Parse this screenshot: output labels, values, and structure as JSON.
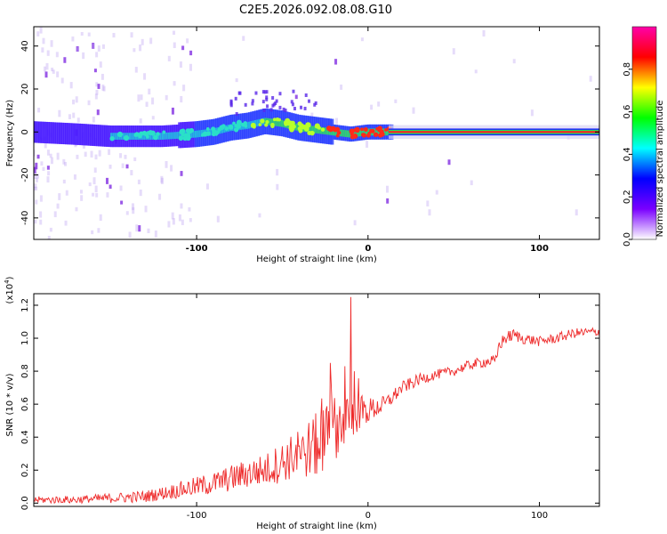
{
  "title": "C2E5.2026.092.08.08.G10",
  "chart_data": [
    {
      "type": "heatmap",
      "name": "spectrogram",
      "xlabel": "Height of straight line (km)",
      "ylabel": "Frequency (Hz)",
      "xlim": [
        -195,
        135
      ],
      "ylim": [
        -50,
        49
      ],
      "xticks": [
        -100,
        0,
        100
      ],
      "yticks": [
        -40,
        -20,
        0,
        20,
        40
      ],
      "ridge": {
        "x": [
          -195,
          -170,
          -150,
          -120,
          -100,
          -90,
          -80,
          -70,
          -60,
          -50,
          -40,
          -30,
          -20,
          -10,
          0,
          10,
          135
        ],
        "y": [
          0,
          -1,
          -2,
          -2,
          -1,
          0,
          2,
          3,
          5,
          4,
          2,
          1,
          0,
          -1,
          0,
          0,
          0
        ]
      },
      "colorbar": {
        "label": "Normalized spectral amplitude",
        "range": [
          0,
          1
        ],
        "ticks": [
          "0.0",
          "0.2",
          "0.4",
          "0.6",
          "0.8"
        ],
        "colors": [
          "#ffffff",
          "#7a00ff",
          "#0000ff",
          "#00ffff",
          "#00ff00",
          "#ffff00",
          "#ff0000",
          "#ff00aa"
        ]
      }
    },
    {
      "type": "line",
      "name": "snr",
      "xlabel": "Height of straight line (km)",
      "ylabel": "SNR (10 * v/v)",
      "ymultiplier": "(x10",
      "ymultiplier_exp": "4",
      "ymultiplier_close": ")",
      "xlim": [
        -195,
        135
      ],
      "ylim": [
        -0.02,
        1.27
      ],
      "xticks": [
        -100,
        0,
        100
      ],
      "yticks": [
        0.0,
        0.2,
        0.4,
        0.6,
        0.8,
        1.0,
        1.2
      ],
      "ytick_labels": [
        "0.0",
        "0.2",
        "0.4",
        "0.6",
        "0.8",
        "1.0",
        "1.2"
      ],
      "color": "#ee2a2a",
      "series": {
        "x": [
          -195,
          -170,
          -150,
          -130,
          -120,
          -110,
          -100,
          -90,
          -80,
          -70,
          -60,
          -50,
          -40,
          -30,
          -25,
          -20,
          -15,
          -10,
          -8,
          -5,
          0,
          5,
          10,
          15,
          20,
          30,
          40,
          50,
          60,
          70,
          75,
          76,
          80,
          85,
          90,
          100,
          110,
          120,
          135
        ],
        "y": [
          0.02,
          0.02,
          0.03,
          0.04,
          0.06,
          0.08,
          0.1,
          0.12,
          0.15,
          0.18,
          0.2,
          0.25,
          0.3,
          0.35,
          0.4,
          0.45,
          0.5,
          0.52,
          0.55,
          0.55,
          0.56,
          0.58,
          0.6,
          0.65,
          0.7,
          0.75,
          0.78,
          0.8,
          0.84,
          0.86,
          0.86,
          0.95,
          1.0,
          1.02,
          1.0,
          0.98,
          1.0,
          1.03,
          1.04
        ]
      },
      "noise": {
        "x": [
          -195,
          -150,
          -120,
          -100,
          -80,
          -60,
          -40,
          -30,
          -20,
          -10,
          0,
          10,
          20,
          40,
          60,
          80,
          100,
          135
        ],
        "amp": [
          0.02,
          0.03,
          0.04,
          0.06,
          0.08,
          0.1,
          0.15,
          0.2,
          0.2,
          0.15,
          0.08,
          0.05,
          0.04,
          0.03,
          0.03,
          0.04,
          0.03,
          0.03
        ]
      },
      "spikes": [
        {
          "x": -10,
          "y": 1.25
        },
        {
          "x": -22,
          "y": 0.85
        },
        {
          "x": -8,
          "y": 0.8
        }
      ]
    }
  ]
}
